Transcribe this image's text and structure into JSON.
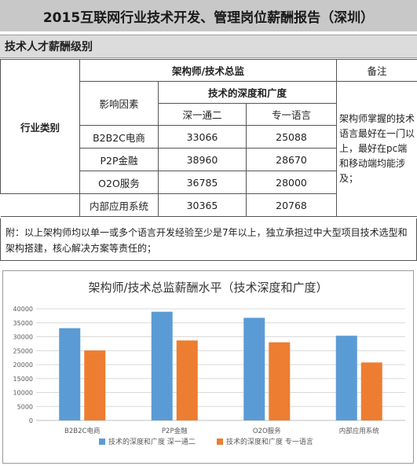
{
  "report_title": "2015互联网行业技术开发、管理岗位薪酬报告（深圳）",
  "section_title": "技术人才薪酬级别",
  "table": {
    "role_header": "架构师/技术总监",
    "remarks_header": "备注",
    "factor_header": "影响因素",
    "dimension_header": "技术的深度和广度",
    "industry_label": "行业类别",
    "columns": [
      "深一通二",
      "专一语言"
    ],
    "rows": [
      {
        "industry": "B2B2C电商",
        "values": [
          "33066",
          "25088"
        ]
      },
      {
        "industry": "P2P金融",
        "values": [
          "38960",
          "28670"
        ]
      },
      {
        "industry": "O2O服务",
        "values": [
          "36785",
          "28000"
        ]
      },
      {
        "industry": "内部应用系统",
        "values": [
          "30365",
          "20768"
        ]
      }
    ],
    "remarks_text": "架构师掌握的技术语言最好在一门以上，最好在pc端和移动端均能涉及；"
  },
  "footnote": "附：以上架构师均以单一或多个语言开发经验至少是7年以上，独立承担过中大型项目技术选型和架构搭建，核心解决方案等责任的；",
  "chart_data": {
    "type": "bar",
    "title": "架构师/技术总监薪酬水平（技术深度和广度）",
    "categories": [
      "B2B2C电商",
      "P2P金融",
      "O2O服务",
      "内部应用系统"
    ],
    "series": [
      {
        "name": "技术的深度和广度 深一通二",
        "values": [
          33066,
          38960,
          36785,
          30365
        ],
        "color": "#5b9bd5"
      },
      {
        "name": "技术的深度和广度 专一语言",
        "values": [
          25088,
          28670,
          28000,
          20768
        ],
        "color": "#ed7d31"
      }
    ],
    "y_ticks": [
      "0",
      "5000",
      "10000",
      "15000",
      "20000",
      "25000",
      "30000",
      "35000",
      "40000"
    ],
    "ylim": [
      0,
      40000
    ],
    "grid": true,
    "legend_position": "bottom"
  }
}
